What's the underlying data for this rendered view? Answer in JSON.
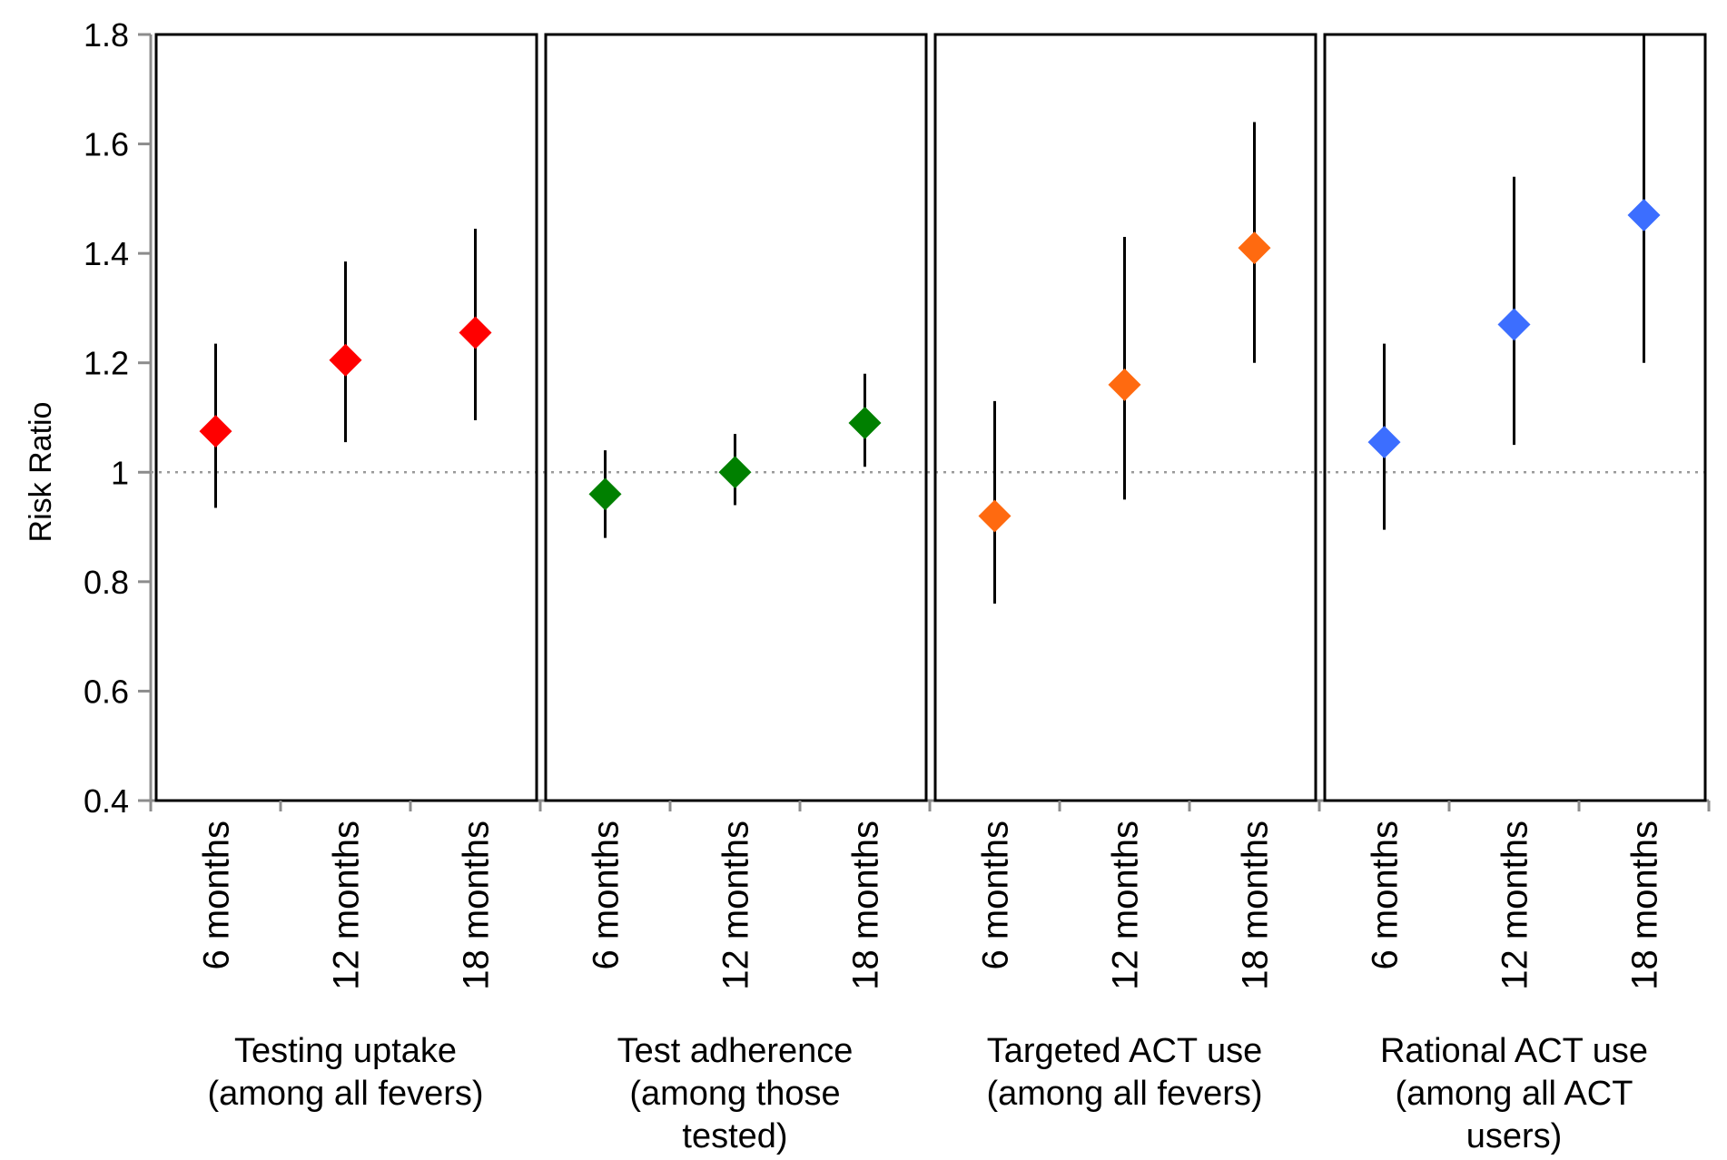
{
  "chart_data": {
    "type": "scatter",
    "ylabel": "Risk Ratio",
    "ylim": [
      0.4,
      1.8
    ],
    "yticks": [
      "0.4",
      "0.6",
      "0.8",
      "1",
      "1.2",
      "1.4",
      "1.6",
      "1.8"
    ],
    "reference_line": 1,
    "grid": false,
    "categories": [
      "6 months",
      "12 months",
      "18 months"
    ],
    "groups": [
      {
        "label_lines": [
          "Testing uptake",
          "(among all fevers)"
        ],
        "color": "#ff0000",
        "points": [
          {
            "x": "6 months",
            "y": 1.075,
            "low": 0.935,
            "high": 1.235
          },
          {
            "x": "12 months",
            "y": 1.205,
            "low": 1.055,
            "high": 1.385
          },
          {
            "x": "18 months",
            "y": 1.255,
            "low": 1.095,
            "high": 1.445
          }
        ]
      },
      {
        "label_lines": [
          "Test adherence",
          "(among those",
          "tested)"
        ],
        "color": "#008000",
        "points": [
          {
            "x": "6 months",
            "y": 0.96,
            "low": 0.88,
            "high": 1.04
          },
          {
            "x": "12 months",
            "y": 1.0,
            "low": 0.94,
            "high": 1.07
          },
          {
            "x": "18 months",
            "y": 1.09,
            "low": 1.01,
            "high": 1.18
          }
        ]
      },
      {
        "label_lines": [
          "Targeted ACT use",
          "(among all fevers)"
        ],
        "color": "#ff6a10",
        "points": [
          {
            "x": "6 months",
            "y": 0.92,
            "low": 0.76,
            "high": 1.13
          },
          {
            "x": "12 months",
            "y": 1.16,
            "low": 0.95,
            "high": 1.43
          },
          {
            "x": "18 months",
            "y": 1.41,
            "low": 1.2,
            "high": 1.64
          }
        ]
      },
      {
        "label_lines": [
          "Rational ACT use",
          "(among all ACT",
          "users)"
        ],
        "color": "#3c6eff",
        "points": [
          {
            "x": "6 months",
            "y": 1.055,
            "low": 0.895,
            "high": 1.235
          },
          {
            "x": "12 months",
            "y": 1.27,
            "low": 1.05,
            "high": 1.54
          },
          {
            "x": "18 months",
            "y": 1.47,
            "low": 1.2,
            "high": 1.8
          }
        ]
      }
    ]
  }
}
